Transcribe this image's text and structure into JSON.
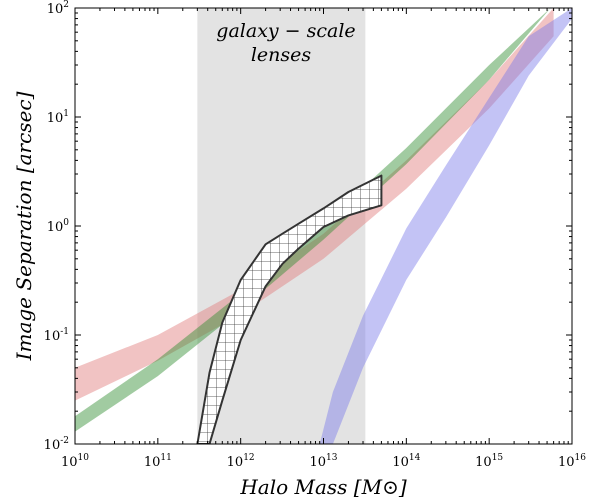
{
  "chart_data": {
    "type": "area",
    "xlabel": "Halo Mass [M⊙]",
    "ylabel": "Image Separation [arcsec]",
    "xscale": "log",
    "yscale": "log",
    "xlim": [
      10000000000.0,
      1e+16
    ],
    "ylim": [
      0.01,
      100
    ],
    "grid": false,
    "legend": "none",
    "x_ticks": [
      {
        "base": "10",
        "exp": "10",
        "value": 10000000000.0
      },
      {
        "base": "10",
        "exp": "11",
        "value": 100000000000.0
      },
      {
        "base": "10",
        "exp": "12",
        "value": 1000000000000.0
      },
      {
        "base": "10",
        "exp": "13",
        "value": 10000000000000.0
      },
      {
        "base": "10",
        "exp": "14",
        "value": 100000000000000.0
      },
      {
        "base": "10",
        "exp": "15",
        "value": 1000000000000000.0
      },
      {
        "base": "10",
        "exp": "16",
        "value": 1e+16
      }
    ],
    "y_ticks": [
      {
        "base": "10",
        "exp": "-2",
        "value": 0.01
      },
      {
        "base": "10",
        "exp": "-1",
        "value": 0.1
      },
      {
        "base": "10",
        "exp": "0",
        "value": 1
      },
      {
        "base": "10",
        "exp": "1",
        "value": 10
      },
      {
        "base": "10",
        "exp": "2",
        "value": 100
      }
    ],
    "annotation": {
      "line1": "galaxy − scale",
      "line2": "lenses"
    },
    "shaded_region": {
      "x_range": [
        300000000000.0,
        32000000000000.0
      ],
      "color": "#d9d9d9"
    },
    "series": [
      {
        "color": "#e07a7a",
        "x": [
          10000000000.0,
          100000000000.0,
          1000000000000.0,
          10000000000000.0,
          100000000000000.0,
          1000000000000000.0,
          6000000000000000.0
        ],
        "y_low": [
          0.025,
          0.058,
          0.155,
          0.5,
          2.2,
          12,
          55
        ],
        "y_high": [
          0.05,
          0.1,
          0.26,
          0.85,
          4.0,
          22,
          100
        ]
      },
      {
        "color": "#2e8b2e",
        "x": [
          10000000000.0,
          100000000000.0,
          1000000000000.0,
          10000000000000.0,
          100000000000000.0,
          1000000000000000.0,
          5500000000000000.0
        ],
        "y_low": [
          0.013,
          0.042,
          0.17,
          0.75,
          3.7,
          22,
          100
        ],
        "y_high": [
          0.018,
          0.06,
          0.24,
          1.05,
          5.2,
          30,
          100
        ]
      },
      {
        "color": "#7a7ae8",
        "x": [
          9000000000000.0,
          13000000000000.0,
          30000000000000.0,
          100000000000000.0,
          300000000000000.0,
          1000000000000000.0,
          3000000000000000.0,
          1e+16
        ],
        "y_low": [
          0.01,
          0.01,
          0.05,
          0.32,
          1.2,
          5.5,
          24,
          80
        ],
        "y_high": [
          0.01,
          0.03,
          0.15,
          0.95,
          3.6,
          15,
          55,
          100
        ]
      },
      {
        "color": "#333333",
        "hatch": "grid",
        "x": [
          300000000000.0,
          420000000000.0,
          600000000000.0,
          1000000000000.0,
          2000000000000.0,
          3200000000000.0,
          5000000000000.0,
          10000000000000.0,
          20000000000000.0,
          50000000000000.0
        ],
        "y_low": [
          0.01,
          0.01,
          0.025,
          0.09,
          0.28,
          0.45,
          0.62,
          0.98,
          1.25,
          1.55
        ],
        "y_high": [
          0.01,
          0.045,
          0.13,
          0.32,
          0.68,
          0.85,
          1.05,
          1.45,
          2.05,
          2.9
        ]
      }
    ]
  }
}
